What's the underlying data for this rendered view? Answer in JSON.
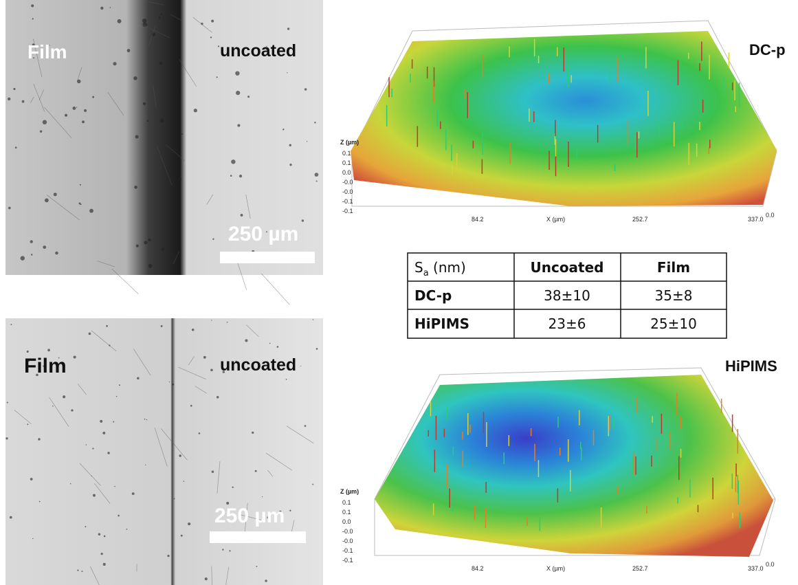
{
  "micrographs": [
    {
      "film_label": "Film",
      "uncoated_label": "uncoated",
      "scale_bar": "250 µm"
    },
    {
      "film_label": "Film",
      "uncoated_label": "uncoated",
      "scale_bar": "250 µm"
    }
  ],
  "surface_plots": [
    {
      "title": "DC-p",
      "z_label": "Z (µm)",
      "z_ticks": [
        "0.1",
        "0.1",
        "0.0",
        "-0.0",
        "-0.0",
        "-0.1",
        "-0.1"
      ],
      "x_label": "X (µm)",
      "x_ticks": [
        "84.2",
        "252.7",
        "337.0"
      ],
      "y_tick": "0.0"
    },
    {
      "title": "HiPIMS",
      "z_label": "Z (µm)",
      "z_ticks": [
        "0.1",
        "0.1",
        "0.0",
        "-0.0",
        "-0.0",
        "-0.1",
        "-0.1"
      ],
      "x_label": "X (µm)",
      "x_ticks": [
        "84.2",
        "252.7",
        "337.0"
      ],
      "y_tick": "0.0"
    }
  ],
  "table": {
    "header": {
      "symbol": "S",
      "subscript": "a",
      "unit": " (nm)",
      "columns": [
        "Uncoated",
        "Film"
      ]
    },
    "rows": [
      [
        "DC-p",
        "38±10",
        "35±8"
      ],
      [
        "HiPIMS",
        "23±6",
        "25±10"
      ]
    ]
  }
}
